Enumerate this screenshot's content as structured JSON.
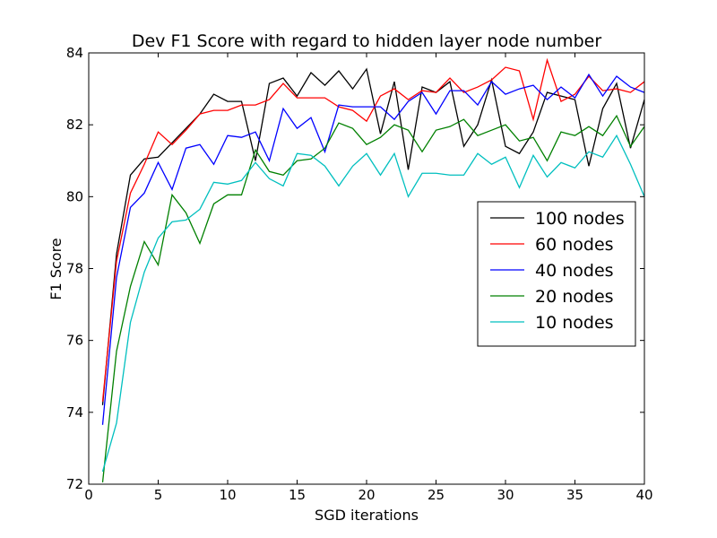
{
  "chart_data": {
    "type": "line",
    "title": "Dev F1 Score with regard to hidden layer node number",
    "xlabel": "SGD iterations",
    "ylabel": "F1 Score",
    "xlim": [
      0,
      40
    ],
    "ylim": [
      72,
      84
    ],
    "xticks": [
      "0",
      "5",
      "10",
      "15",
      "20",
      "25",
      "30",
      "35",
      "40"
    ],
    "yticks": [
      "72",
      "74",
      "76",
      "78",
      "80",
      "82",
      "84"
    ],
    "grid": false,
    "legend_position": "center-right",
    "x": [
      1,
      2,
      3,
      4,
      5,
      6,
      7,
      8,
      9,
      10,
      11,
      12,
      13,
      14,
      15,
      16,
      17,
      18,
      19,
      20,
      21,
      22,
      23,
      24,
      25,
      26,
      27,
      28,
      29,
      30,
      31,
      32,
      33,
      34,
      35,
      36,
      37,
      38,
      39,
      40
    ],
    "series": [
      {
        "name": "100 nodes",
        "color": "#000000",
        "values": [
          74.2,
          78.4,
          80.6,
          81.05,
          81.1,
          81.5,
          81.9,
          82.3,
          82.85,
          82.65,
          82.65,
          81.0,
          83.15,
          83.3,
          82.8,
          83.45,
          83.1,
          83.5,
          83.0,
          83.55,
          81.75,
          83.2,
          80.75,
          83.05,
          82.9,
          83.2,
          81.4,
          82.0,
          83.25,
          81.4,
          81.2,
          81.8,
          82.9,
          82.8,
          82.7,
          80.85,
          82.45,
          83.15,
          81.35,
          82.7
        ]
      },
      {
        "name": "60 nodes",
        "color": "#ff0000",
        "values": [
          74.3,
          78.2,
          80.1,
          80.9,
          81.8,
          81.45,
          81.85,
          82.3,
          82.4,
          82.4,
          82.55,
          82.55,
          82.7,
          83.15,
          82.75,
          82.75,
          82.75,
          82.5,
          82.4,
          82.1,
          82.8,
          83.0,
          82.7,
          82.95,
          82.9,
          83.3,
          82.9,
          83.05,
          83.25,
          83.6,
          83.5,
          82.15,
          83.8,
          82.65,
          82.85,
          83.35,
          82.95,
          83.0,
          82.9,
          83.2
        ]
      },
      {
        "name": "40 nodes",
        "color": "#0000ff",
        "values": [
          73.65,
          77.75,
          79.7,
          80.1,
          80.95,
          80.2,
          81.35,
          81.45,
          80.9,
          81.7,
          81.65,
          81.8,
          81.0,
          82.45,
          81.9,
          82.2,
          81.25,
          82.55,
          82.5,
          82.5,
          82.5,
          82.15,
          82.65,
          82.9,
          82.3,
          82.95,
          82.95,
          82.55,
          83.2,
          82.85,
          83.0,
          83.1,
          82.7,
          83.05,
          82.75,
          83.4,
          82.8,
          83.35,
          83.05,
          82.9
        ]
      },
      {
        "name": "20 nodes",
        "color": "#008000",
        "values": [
          72.05,
          75.7,
          77.5,
          78.75,
          78.1,
          80.05,
          79.55,
          78.7,
          79.8,
          80.05,
          80.05,
          81.3,
          80.7,
          80.6,
          81.0,
          81.05,
          81.35,
          82.05,
          81.9,
          81.45,
          81.65,
          82.0,
          81.85,
          81.25,
          81.85,
          81.95,
          82.15,
          81.7,
          81.85,
          82.0,
          81.55,
          81.65,
          81.0,
          81.8,
          81.7,
          81.95,
          81.7,
          82.25,
          81.4,
          81.95
        ]
      },
      {
        "name": "10 nodes",
        "color": "#00bfbf",
        "values": [
          72.35,
          73.7,
          76.5,
          77.9,
          78.85,
          79.3,
          79.35,
          79.65,
          80.4,
          80.35,
          80.45,
          80.95,
          80.5,
          80.3,
          81.2,
          81.15,
          80.85,
          80.3,
          80.85,
          81.2,
          80.6,
          81.2,
          80.0,
          80.65,
          80.65,
          80.6,
          80.6,
          81.2,
          80.9,
          81.1,
          80.25,
          81.15,
          80.55,
          80.95,
          80.8,
          81.25,
          81.1,
          81.7,
          80.9,
          80.0
        ]
      }
    ]
  }
}
